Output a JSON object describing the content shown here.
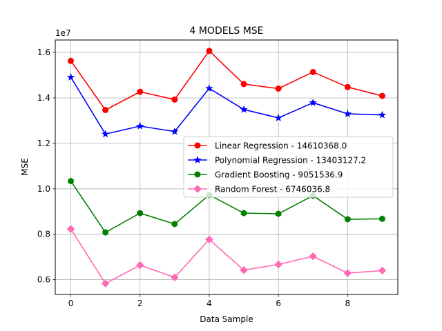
{
  "chart_data": {
    "type": "line",
    "title": "4 MODELS MSE",
    "xlabel": "Data Sample",
    "ylabel": "MSE",
    "offset_text": "1e7",
    "x": [
      0,
      1,
      2,
      3,
      4,
      5,
      6,
      7,
      8,
      9
    ],
    "xlim": [
      -0.45,
      9.45
    ],
    "ylim": [
      0.535,
      1.655
    ],
    "xticks": [
      0,
      2,
      4,
      6,
      8
    ],
    "yticks": [
      0.6,
      0.8,
      1.0,
      1.2,
      1.4,
      1.6
    ],
    "ytick_labels": [
      "0.6",
      "0.8",
      "1.0",
      "1.2",
      "1.4",
      "1.6"
    ],
    "grid": true,
    "legend_position": "center-right",
    "series": [
      {
        "name": "Linear Regression - 14610368.0",
        "color": "#ff0000",
        "marker": "circle",
        "values": [
          1.563,
          1.347,
          1.427,
          1.393,
          1.607,
          1.461,
          1.441,
          1.514,
          1.448,
          1.409
        ]
      },
      {
        "name": "Polynomial Regression - 13403127.2",
        "color": "#0000ff",
        "marker": "star",
        "values": [
          1.491,
          1.241,
          1.276,
          1.252,
          1.442,
          1.349,
          1.312,
          1.379,
          1.33,
          1.325
        ]
      },
      {
        "name": "Gradient Boosting - 9051536.9",
        "color": "#008000",
        "marker": "hexagon",
        "values": [
          1.034,
          0.808,
          0.893,
          0.845,
          0.973,
          0.893,
          0.89,
          0.97,
          0.866,
          0.868
        ]
      },
      {
        "name": "Random Forest - 6746036.8",
        "color": "#ff69b4",
        "marker": "diamond",
        "values": [
          0.823,
          0.583,
          0.664,
          0.61,
          0.777,
          0.642,
          0.667,
          0.703,
          0.629,
          0.64
        ]
      }
    ]
  }
}
